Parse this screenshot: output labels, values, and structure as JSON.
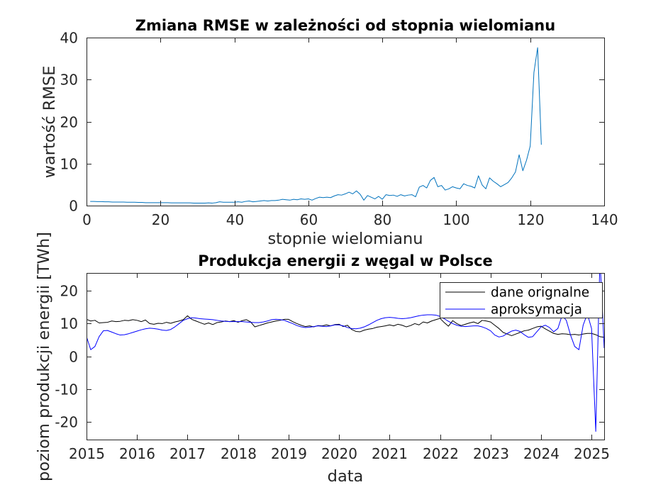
{
  "chart_data": [
    {
      "type": "line",
      "title": "Zmiana RMSE w zależności od stopnia wielomianu",
      "xlabel": "stopnie wielomianu",
      "ylabel": "wartość RMSE",
      "xlim": [
        0,
        140
      ],
      "ylim": [
        0,
        40
      ],
      "xticks": [
        0,
        20,
        40,
        60,
        80,
        100,
        120,
        140
      ],
      "yticks": [
        0,
        10,
        20,
        30,
        40
      ],
      "grid": false,
      "series": [
        {
          "color": "#0072bd",
          "x": [
            1,
            2,
            3,
            4,
            5,
            6,
            7,
            8,
            9,
            10,
            11,
            12,
            13,
            14,
            15,
            16,
            17,
            18,
            19,
            20,
            21,
            22,
            23,
            24,
            25,
            26,
            27,
            28,
            29,
            30,
            31,
            32,
            33,
            34,
            35,
            36,
            37,
            38,
            39,
            40,
            41,
            42,
            43,
            44,
            45,
            46,
            47,
            48,
            49,
            50,
            51,
            52,
            53,
            54,
            55,
            56,
            57,
            58,
            59,
            60,
            61,
            62,
            63,
            64,
            65,
            66,
            67,
            68,
            69,
            70,
            71,
            72,
            73,
            74,
            75,
            76,
            77,
            78,
            79,
            80,
            81,
            82,
            83,
            84,
            85,
            86,
            87,
            88,
            89,
            90,
            91,
            92,
            93,
            94,
            95,
            96,
            97,
            98,
            99,
            100,
            101,
            102,
            103,
            104,
            105,
            106,
            107,
            108,
            109,
            110,
            111,
            112,
            113,
            114,
            115,
            116,
            117,
            118,
            119,
            120,
            121,
            122,
            123
          ],
          "y": [
            1.0,
            1.0,
            0.95,
            0.95,
            0.9,
            0.9,
            0.85,
            0.85,
            0.85,
            0.85,
            0.8,
            0.8,
            0.8,
            0.75,
            0.75,
            0.7,
            0.7,
            0.7,
            0.7,
            0.7,
            0.7,
            0.7,
            0.65,
            0.65,
            0.65,
            0.65,
            0.65,
            0.65,
            0.6,
            0.6,
            0.6,
            0.6,
            0.65,
            0.6,
            0.7,
            0.9,
            0.8,
            0.8,
            0.8,
            0.8,
            0.9,
            0.8,
            1.0,
            1.1,
            0.9,
            1.0,
            1.1,
            1.2,
            1.1,
            1.2,
            1.2,
            1.3,
            1.5,
            1.4,
            1.3,
            1.5,
            1.4,
            1.6,
            1.5,
            1.6,
            1.3,
            1.7,
            2.0,
            1.9,
            2.0,
            1.9,
            2.3,
            2.6,
            2.5,
            2.8,
            3.2,
            2.8,
            3.5,
            2.7,
            1.3,
            2.4,
            2.0,
            1.6,
            2.2,
            1.5,
            2.6,
            2.4,
            2.5,
            2.2,
            2.6,
            2.3,
            2.5,
            2.6,
            2.1,
            4.4,
            4.8,
            4.2,
            6.0,
            6.7,
            4.5,
            4.8,
            3.7,
            4.0,
            4.5,
            4.2,
            4.0,
            5.2,
            4.8,
            4.6,
            4.2,
            7.1,
            4.9,
            4.0,
            6.6,
            5.8,
            5.2,
            4.5,
            5.0,
            5.5,
            6.6,
            8.0,
            12.1,
            8.3,
            10.8,
            14.2,
            31.7,
            37.6,
            14.5
          ]
        }
      ]
    },
    {
      "type": "line",
      "title": "Produkcja energii z węgal w Polsce",
      "xlabel": "data",
      "ylabel": "poziom produkcji energii [TWh]",
      "xlim": [
        "2015-01",
        "2025-04"
      ],
      "ylim": [
        -25.5,
        25.5
      ],
      "xticks": [
        "2015",
        "2016",
        "2017",
        "2018",
        "2019",
        "2020",
        "2021",
        "2022",
        "2023",
        "2024",
        "2025"
      ],
      "yticks": [
        -20,
        -10,
        0,
        10,
        20
      ],
      "grid": false,
      "legend": "top-right",
      "x": [
        "2015-01",
        "2015-02",
        "2015-03",
        "2015-04",
        "2015-05",
        "2015-06",
        "2015-07",
        "2015-08",
        "2015-09",
        "2015-10",
        "2015-11",
        "2015-12",
        "2016-01",
        "2016-02",
        "2016-03",
        "2016-04",
        "2016-05",
        "2016-06",
        "2016-07",
        "2016-08",
        "2016-09",
        "2016-10",
        "2016-11",
        "2016-12",
        "2017-01",
        "2017-02",
        "2017-03",
        "2017-04",
        "2017-05",
        "2017-06",
        "2017-07",
        "2017-08",
        "2017-09",
        "2017-10",
        "2017-11",
        "2017-12",
        "2018-01",
        "2018-02",
        "2018-03",
        "2018-04",
        "2018-05",
        "2018-06",
        "2018-07",
        "2018-08",
        "2018-09",
        "2018-10",
        "2018-11",
        "2018-12",
        "2019-01",
        "2019-02",
        "2019-03",
        "2019-04",
        "2019-05",
        "2019-06",
        "2019-07",
        "2019-08",
        "2019-09",
        "2019-10",
        "2019-11",
        "2019-12",
        "2020-01",
        "2020-02",
        "2020-03",
        "2020-04",
        "2020-05",
        "2020-06",
        "2020-07",
        "2020-08",
        "2020-09",
        "2020-10",
        "2020-11",
        "2020-12",
        "2021-01",
        "2021-02",
        "2021-03",
        "2021-04",
        "2021-05",
        "2021-06",
        "2021-07",
        "2021-08",
        "2021-09",
        "2021-10",
        "2021-11",
        "2021-12",
        "2022-01",
        "2022-02",
        "2022-03",
        "2022-04",
        "2022-05",
        "2022-06",
        "2022-07",
        "2022-08",
        "2022-09",
        "2022-10",
        "2022-11",
        "2022-12",
        "2023-01",
        "2023-02",
        "2023-03",
        "2023-04",
        "2023-05",
        "2023-06",
        "2023-07",
        "2023-08",
        "2023-09",
        "2023-10",
        "2023-11",
        "2023-12",
        "2024-01",
        "2024-02",
        "2024-03",
        "2024-04",
        "2024-05",
        "2024-06",
        "2024-07",
        "2024-08",
        "2024-09",
        "2024-10",
        "2024-11",
        "2024-12",
        "2025-01",
        "2025-02",
        "2025-03",
        "2025-04"
      ],
      "series": [
        {
          "name": "dane orignalne",
          "color": "#000000",
          "values": [
            11.3,
            10.8,
            11.0,
            10.2,
            10.3,
            10.4,
            10.8,
            10.6,
            10.7,
            11.0,
            10.9,
            11.2,
            11.0,
            10.6,
            11.1,
            10.0,
            9.8,
            10.1,
            10.0,
            10.4,
            10.1,
            10.5,
            10.8,
            11.2,
            12.4,
            11.3,
            10.8,
            10.3,
            9.8,
            10.2,
            9.7,
            10.3,
            10.5,
            10.8,
            10.6,
            10.9,
            10.4,
            10.9,
            11.2,
            10.5,
            9.0,
            9.4,
            9.8,
            10.2,
            10.5,
            10.8,
            11.0,
            11.3,
            11.3,
            10.6,
            10.0,
            9.5,
            9.1,
            9.3,
            9.0,
            9.4,
            9.3,
            9.6,
            9.3,
            9.7,
            9.8,
            9.1,
            9.5,
            8.2,
            7.6,
            7.5,
            8.0,
            8.3,
            8.5,
            8.9,
            9.1,
            9.3,
            9.6,
            9.3,
            9.8,
            9.5,
            9.0,
            9.4,
            10.0,
            9.6,
            10.5,
            10.2,
            10.8,
            11.2,
            11.6,
            10.3,
            9.2,
            10.9,
            10.0,
            9.4,
            9.8,
            10.2,
            10.5,
            10.0,
            11.0,
            10.8,
            10.5,
            9.5,
            8.5,
            7.3,
            6.8,
            6.3,
            6.8,
            7.3,
            7.8,
            8.0,
            8.5,
            9.0,
            9.2,
            8.4,
            7.7,
            7.0,
            6.7,
            6.9,
            6.8,
            6.6,
            6.7,
            6.5,
            6.8,
            7.0,
            7.0,
            6.6,
            6.0,
            5.8
          ]
        },
        {
          "name": "aproksymacja",
          "color": "#0000ff",
          "values": [
            6.0,
            2.0,
            3.0,
            6.0,
            7.8,
            7.9,
            7.4,
            6.9,
            6.5,
            6.6,
            6.9,
            7.3,
            7.7,
            8.1,
            8.4,
            8.6,
            8.5,
            8.3,
            8.0,
            7.9,
            8.2,
            9.0,
            10.0,
            11.0,
            11.5,
            11.8,
            11.7,
            11.5,
            11.4,
            11.3,
            11.2,
            11.0,
            10.8,
            10.7,
            10.6,
            10.6,
            10.6,
            10.6,
            10.5,
            10.4,
            10.3,
            10.3,
            10.5,
            10.8,
            11.2,
            11.3,
            11.2,
            11.0,
            10.5,
            10.0,
            9.4,
            9.0,
            8.8,
            8.9,
            9.1,
            9.3,
            9.2,
            9.1,
            9.3,
            9.6,
            9.6,
            9.3,
            8.8,
            8.5,
            8.4,
            8.6,
            9.0,
            9.6,
            10.3,
            11.0,
            11.5,
            11.8,
            11.9,
            11.8,
            11.6,
            11.5,
            11.6,
            11.8,
            12.1,
            12.4,
            12.6,
            12.7,
            12.7,
            12.6,
            12.2,
            11.5,
            10.7,
            10.0,
            9.5,
            9.2,
            9.1,
            9.2,
            9.3,
            9.3,
            9.0,
            8.5,
            7.8,
            6.5,
            5.9,
            6.2,
            7.0,
            7.7,
            8.0,
            7.6,
            6.6,
            5.8,
            6.0,
            7.5,
            9.0,
            9.5,
            8.8,
            7.5,
            8.5,
            12.5,
            11.0,
            6.5,
            3.0,
            2.0,
            9.5,
            13.0,
            8.5,
            -23.0,
            30.0,
            2.5
          ]
        }
      ]
    }
  ]
}
